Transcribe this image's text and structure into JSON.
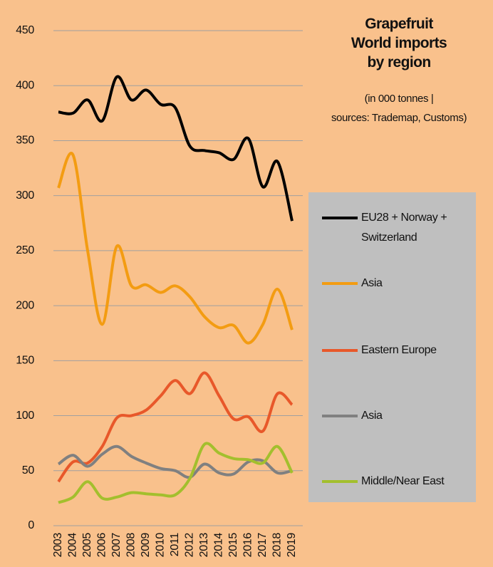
{
  "chart_data": {
    "type": "line",
    "title": "Grapefruit\nWorld imports\nby region",
    "subtitle": "(in 000 tonnes |\nsources: Trademap, Customs)",
    "categories": [
      "2003",
      "2004",
      "2005",
      "2006",
      "2007",
      "2008",
      "2009",
      "2010",
      "2011",
      "2012",
      "2013",
      "2014",
      "2015",
      "2016",
      "2017",
      "2018",
      "2019"
    ],
    "series": [
      {
        "name": "EU28 + Norway +\nSwitzerland",
        "color": "#000000",
        "values": [
          376,
          375,
          387,
          368,
          408,
          387,
          396,
          383,
          380,
          345,
          341,
          339,
          333,
          352,
          308,
          331,
          277
        ]
      },
      {
        "name": "Asia",
        "color": "#f39c12",
        "values": [
          307,
          337,
          250,
          183,
          254,
          218,
          219,
          212,
          218,
          208,
          190,
          180,
          182,
          166,
          183,
          215,
          178
        ]
      },
      {
        "name": "Eastern Europe",
        "color": "#e8582a",
        "values": [
          40,
          58,
          57,
          72,
          98,
          100,
          105,
          118,
          132,
          120,
          139,
          118,
          97,
          99,
          86,
          120,
          110
        ]
      },
      {
        "name": "Asia",
        "color": "#808080",
        "values": [
          56,
          64,
          54,
          65,
          72,
          63,
          57,
          52,
          50,
          44,
          56,
          48,
          47,
          58,
          59,
          48,
          50
        ]
      },
      {
        "name": "Middle/Near East",
        "color": "#a3bf2d",
        "values": [
          21,
          26,
          40,
          25,
          26,
          30,
          29,
          28,
          28,
          43,
          74,
          66,
          61,
          60,
          57,
          72,
          48
        ]
      }
    ],
    "ylim": [
      0,
      450
    ],
    "yticks": [
      0,
      50,
      100,
      150,
      200,
      250,
      300,
      350,
      400,
      450
    ],
    "grid": true
  }
}
